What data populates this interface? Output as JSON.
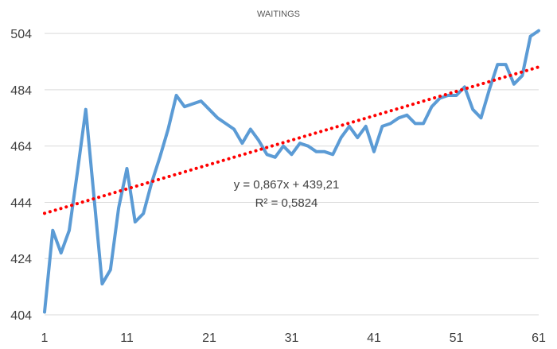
{
  "chart_data": {
    "type": "line",
    "title": "WAITINGS",
    "xlabel": "",
    "ylabel": "",
    "xlim": [
      1,
      61
    ],
    "ylim": [
      404,
      508
    ],
    "x_ticks": [
      1,
      11,
      21,
      31,
      41,
      51,
      61
    ],
    "y_ticks": [
      404,
      424,
      444,
      464,
      484,
      504
    ],
    "grid": "horizontal",
    "series": [
      {
        "color": "#5b9bd5",
        "x": [
          1,
          2,
          3,
          4,
          5,
          6,
          7,
          8,
          9,
          10,
          11,
          12,
          13,
          14,
          15,
          16,
          17,
          18,
          19,
          20,
          21,
          22,
          23,
          24,
          25,
          26,
          27,
          28,
          29,
          30,
          31,
          32,
          33,
          34,
          35,
          36,
          37,
          38,
          39,
          40,
          41,
          42,
          43,
          44,
          45,
          46,
          47,
          48,
          49,
          50,
          51,
          52,
          53,
          54,
          55,
          56,
          57,
          58,
          59,
          60,
          61
        ],
        "values": [
          405,
          434,
          426,
          434,
          455,
          477,
          446,
          415,
          420,
          442,
          456,
          437,
          440,
          451,
          460,
          470,
          482,
          478,
          479,
          480,
          477,
          474,
          472,
          470,
          465,
          470,
          466,
          461,
          460,
          464,
          461,
          465,
          464,
          462,
          462,
          461,
          467,
          471,
          467,
          471,
          462,
          471,
          472,
          474,
          475,
          472,
          472,
          478,
          481,
          482,
          482,
          485,
          477,
          474,
          484,
          493,
          493,
          486,
          489,
          503,
          505
        ]
      }
    ],
    "trendline": {
      "color": "#ff0000",
      "style": "dotted",
      "slope": 0.867,
      "intercept": 439.21,
      "equation": "y = 0,867x + 439,21",
      "r_squared": "R² = 0,5824"
    }
  }
}
